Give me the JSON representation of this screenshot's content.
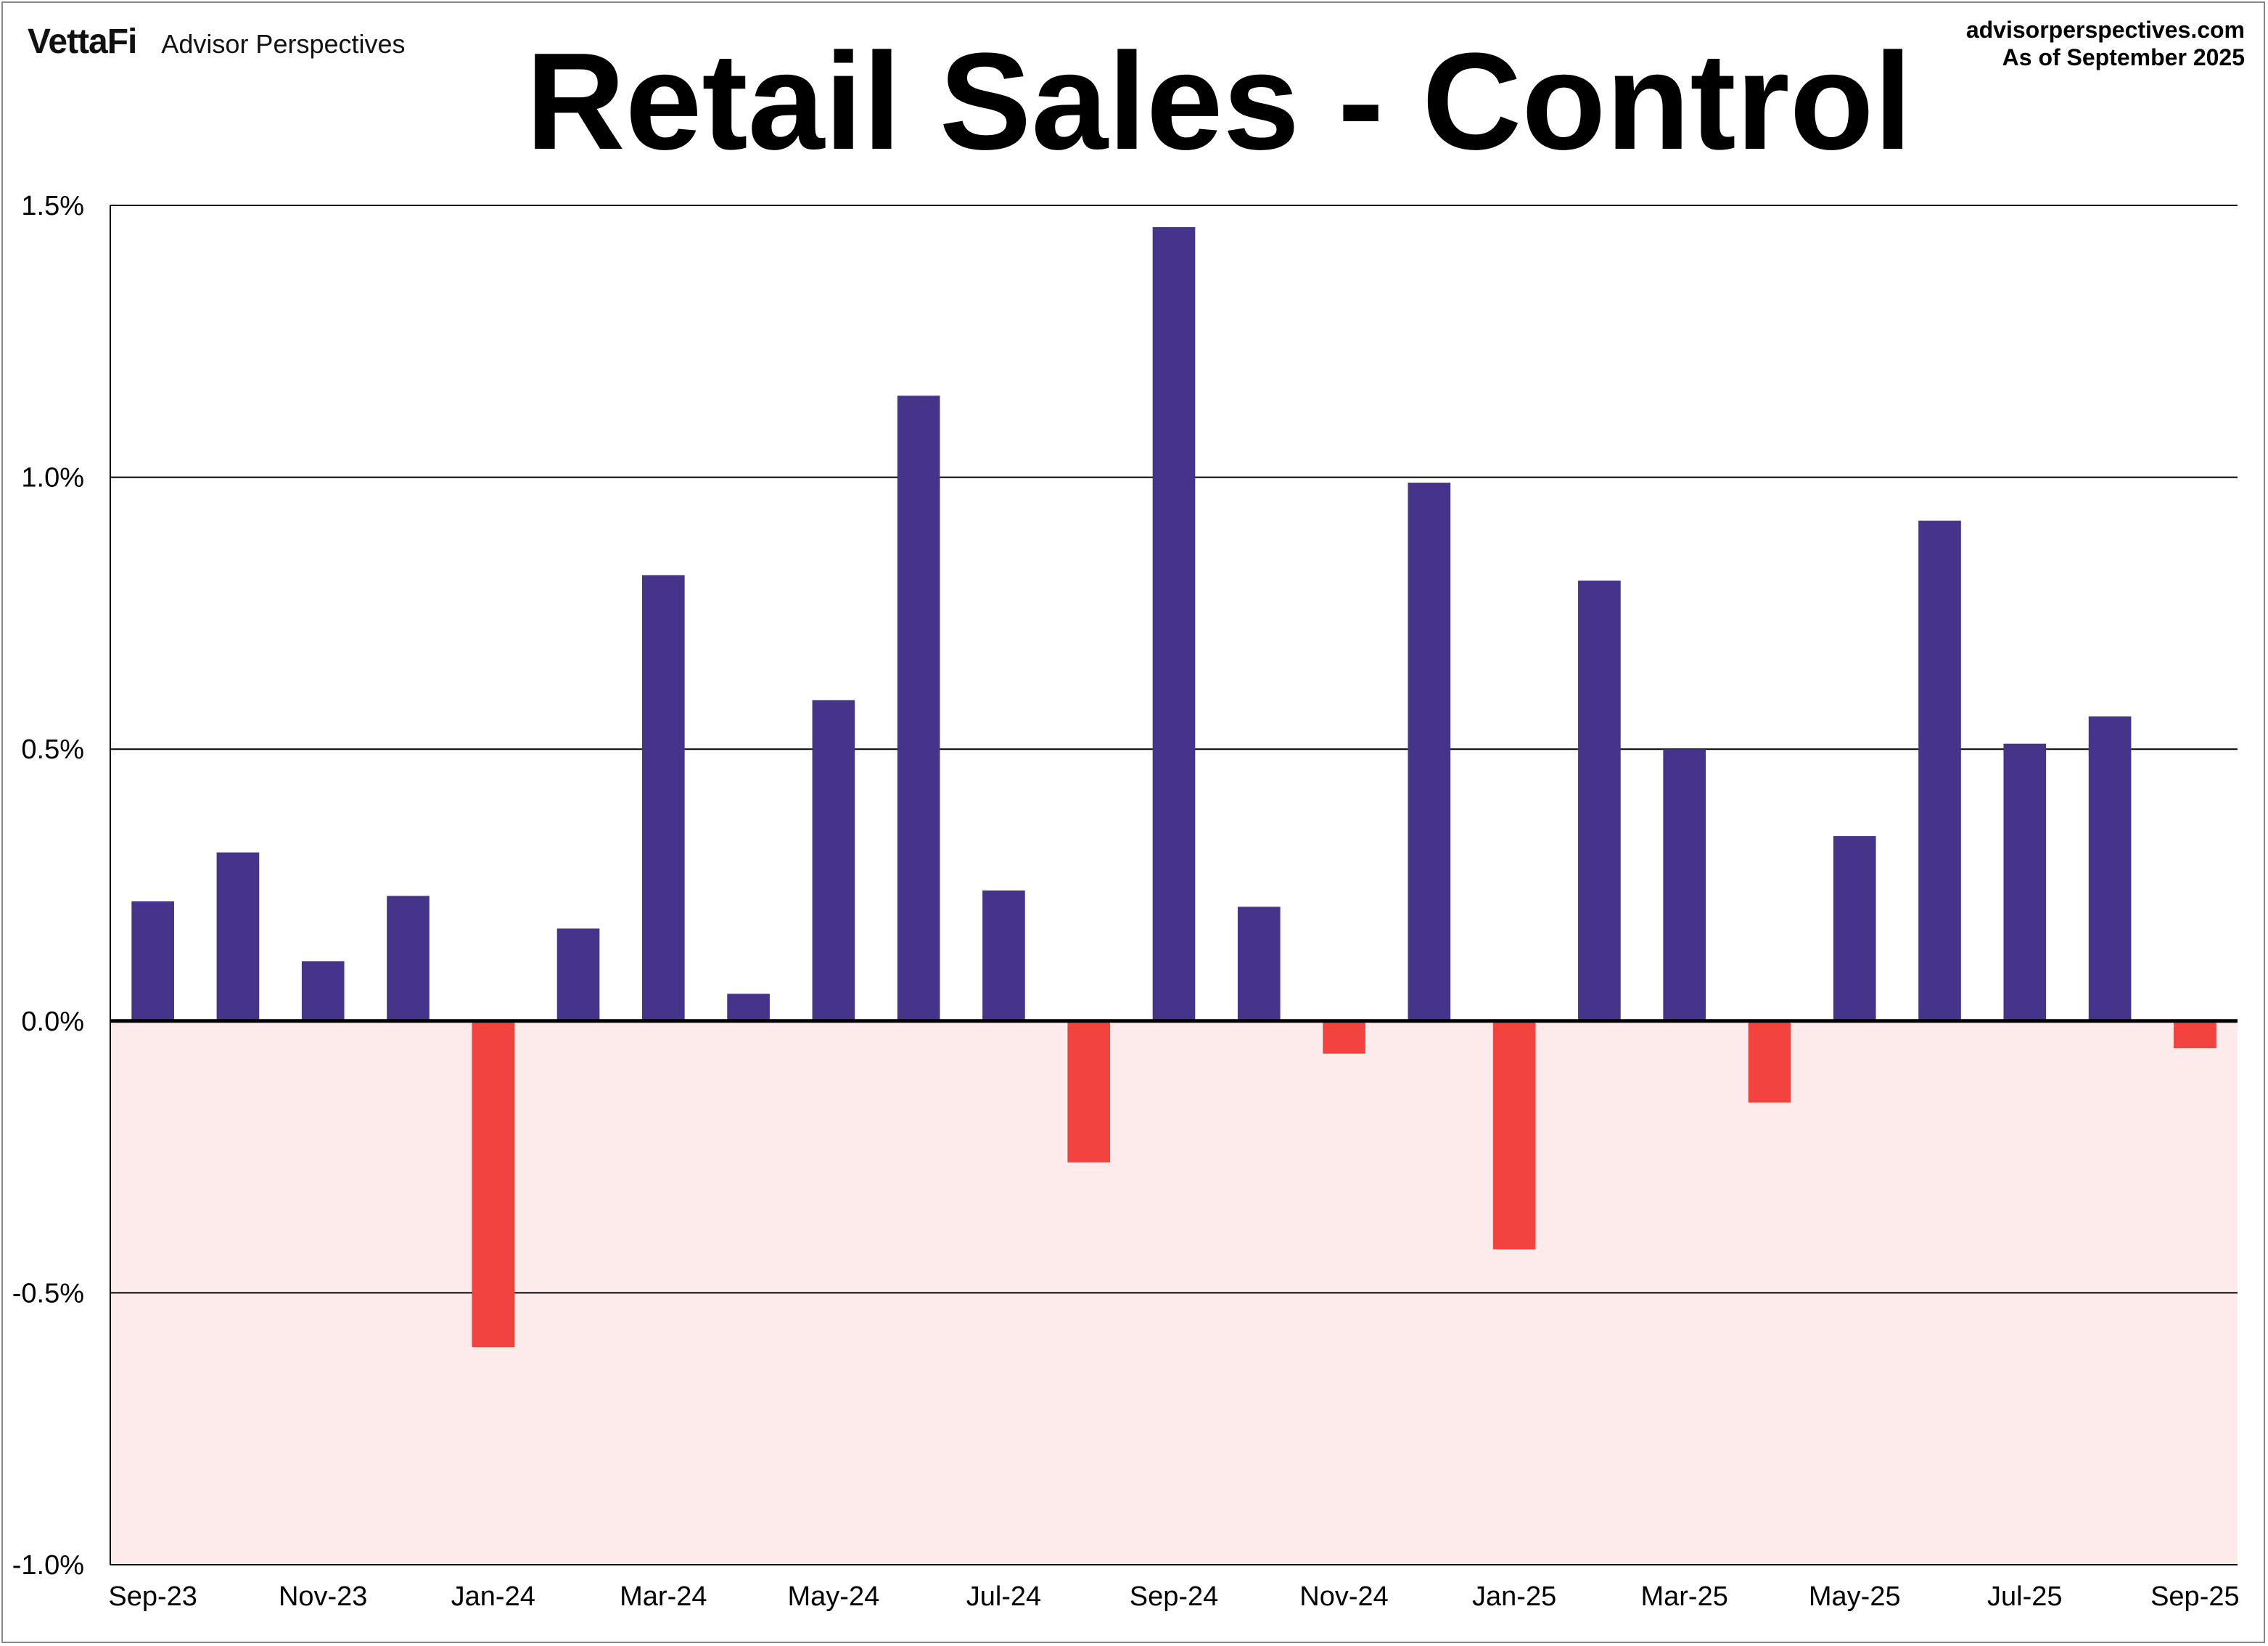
{
  "header": {
    "logo_mark": "VettaFi",
    "logo_text": "Advisor Perspectives",
    "source_site": "advisorperspectives.com",
    "source_date": "As of September 2025"
  },
  "colors": {
    "positive": "#46338A",
    "negative": "#F2433E",
    "negative_zone": "#FDEBEC"
  },
  "chart_data": {
    "type": "bar",
    "title": "Retail Sales - Control",
    "xlabel": "",
    "ylabel": "",
    "ylim": [
      -1.0,
      1.5
    ],
    "yticks": [
      1.5,
      1.0,
      0.5,
      0.0,
      -0.5,
      -1.0
    ],
    "ytick_labels": [
      "1.5%",
      "1.0%",
      "0.5%",
      "0.0%",
      "-0.5%",
      "-1.0%"
    ],
    "grid": true,
    "categories": [
      "Sep-23",
      "Oct-23",
      "Nov-23",
      "Dec-23",
      "Jan-24",
      "Feb-24",
      "Mar-24",
      "Apr-24",
      "May-24",
      "Jun-24",
      "Jul-24",
      "Aug-24",
      "Sep-24",
      "Oct-24",
      "Nov-24",
      "Dec-24",
      "Jan-25",
      "Feb-25",
      "Mar-25",
      "Apr-25",
      "May-25",
      "Jun-25",
      "Jul-25",
      "Aug-25",
      "Sep-25"
    ],
    "xtick_labels": [
      "Sep-23",
      "",
      "Nov-23",
      "",
      "Jan-24",
      "",
      "Mar-24",
      "",
      "May-24",
      "",
      "Jul-24",
      "",
      "Sep-24",
      "",
      "Nov-24",
      "",
      "Jan-25",
      "",
      "Mar-25",
      "",
      "May-25",
      "",
      "Jul-25",
      "",
      "Sep-25"
    ],
    "values": [
      0.22,
      0.31,
      0.11,
      0.23,
      -0.6,
      0.17,
      0.82,
      0.05,
      0.59,
      1.15,
      0.24,
      -0.26,
      1.46,
      0.21,
      -0.06,
      0.99,
      -0.42,
      0.81,
      0.5,
      -0.15,
      0.34,
      0.92,
      0.51,
      0.56,
      -0.05
    ]
  }
}
